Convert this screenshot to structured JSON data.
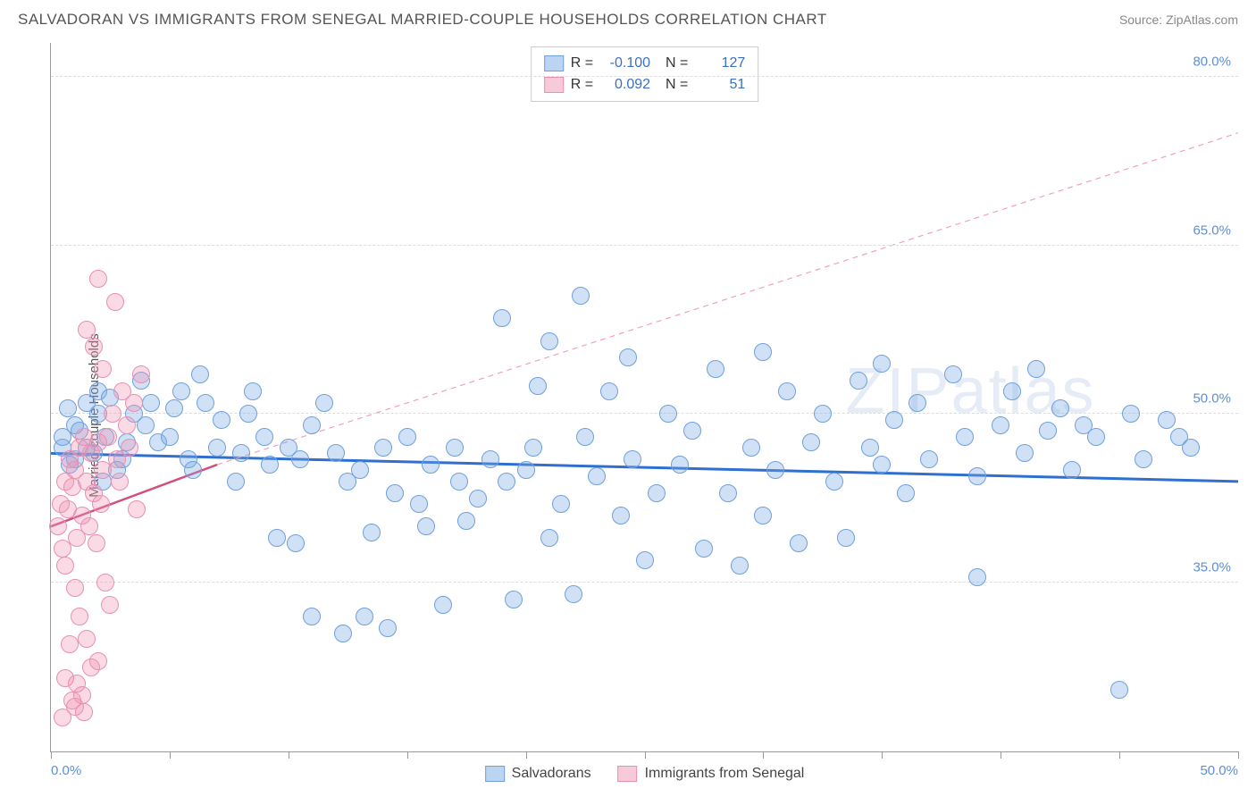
{
  "title": "SALVADORAN VS IMMIGRANTS FROM SENEGAL MARRIED-COUPLE HOUSEHOLDS CORRELATION CHART",
  "source": "Source: ZipAtlas.com",
  "ylabel": "Married-couple Households",
  "watermark": "ZIPatlas",
  "chart": {
    "type": "scatter",
    "xlim": [
      0,
      50
    ],
    "ylim": [
      20,
      83
    ],
    "yticks": [
      35,
      50,
      65,
      80
    ],
    "yticklabels": [
      "35.0%",
      "50.0%",
      "65.0%",
      "80.0%"
    ],
    "xticks": [
      0,
      5,
      10,
      15,
      20,
      25,
      30,
      35,
      40,
      45,
      50
    ],
    "xticklabels_shown": {
      "0": "0.0%",
      "50": "50.0%"
    },
    "background_color": "#ffffff",
    "grid_color": "#dddddd",
    "axis_color": "#999999",
    "marker_radius": 10,
    "series": [
      {
        "name": "Salvadorans",
        "fill": "rgba(120,170,230,0.35)",
        "stroke": "#6fa0dd",
        "regression": {
          "x1": 0,
          "y1": 46.5,
          "x2": 50,
          "y2": 44.0,
          "color": "#2f6fd0",
          "width": 3,
          "dash": "none"
        },
        "R": "-0.100",
        "N": "127",
        "points": [
          [
            0.5,
            47
          ],
          [
            0.5,
            48
          ],
          [
            1,
            46
          ],
          [
            1,
            49
          ],
          [
            0.8,
            45.5
          ],
          [
            1.5,
            47
          ],
          [
            1.2,
            48.5
          ],
          [
            1.8,
            46.5
          ],
          [
            2,
            52
          ],
          [
            2,
            50
          ],
          [
            2.5,
            51.5
          ],
          [
            2.3,
            48
          ],
          [
            3,
            46
          ],
          [
            2.8,
            45
          ],
          [
            3.2,
            47.5
          ],
          [
            3.5,
            50
          ],
          [
            4,
            49
          ],
          [
            3.8,
            53
          ],
          [
            4.2,
            51
          ],
          [
            4.5,
            47.5
          ],
          [
            5,
            48
          ],
          [
            5.5,
            52
          ],
          [
            5.2,
            50.5
          ],
          [
            5.8,
            46
          ],
          [
            6,
            45
          ],
          [
            6.5,
            51
          ],
          [
            6.3,
            53.5
          ],
          [
            7,
            47
          ],
          [
            7.2,
            49.5
          ],
          [
            7.8,
            44
          ],
          [
            8,
            46.5
          ],
          [
            8.5,
            52
          ],
          [
            8.3,
            50
          ],
          [
            9,
            48
          ],
          [
            9.5,
            39
          ],
          [
            9.2,
            45.5
          ],
          [
            10,
            47
          ],
          [
            10.5,
            46
          ],
          [
            10.3,
            38.5
          ],
          [
            11,
            32
          ],
          [
            11,
            49
          ],
          [
            11.5,
            51
          ],
          [
            12,
            46.5
          ],
          [
            12.3,
            30.5
          ],
          [
            12.5,
            44
          ],
          [
            13,
            45
          ],
          [
            13.5,
            39.5
          ],
          [
            13.2,
            32
          ],
          [
            14,
            47
          ],
          [
            14.5,
            43
          ],
          [
            14.2,
            31
          ],
          [
            15,
            48
          ],
          [
            15.5,
            42
          ],
          [
            15.8,
            40
          ],
          [
            16,
            45.5
          ],
          [
            16.5,
            33
          ],
          [
            17,
            47
          ],
          [
            17.2,
            44
          ],
          [
            17.5,
            40.5
          ],
          [
            18,
            42.5
          ],
          [
            18.5,
            46
          ],
          [
            19,
            58.5
          ],
          [
            19.2,
            44
          ],
          [
            19.5,
            33.5
          ],
          [
            20,
            45
          ],
          [
            20.5,
            52.5
          ],
          [
            20.3,
            47
          ],
          [
            21,
            56.5
          ],
          [
            21,
            39
          ],
          [
            21.5,
            42
          ],
          [
            22,
            34
          ],
          [
            22.5,
            48
          ],
          [
            22.3,
            60.5
          ],
          [
            23,
            44.5
          ],
          [
            23.5,
            52
          ],
          [
            24,
            41
          ],
          [
            24.5,
            46
          ],
          [
            24.3,
            55
          ],
          [
            25,
            37
          ],
          [
            25.5,
            43
          ],
          [
            26,
            50
          ],
          [
            26.5,
            45.5
          ],
          [
            27,
            48.5
          ],
          [
            27.5,
            38
          ],
          [
            28,
            54
          ],
          [
            28.5,
            43
          ],
          [
            29,
            36.5
          ],
          [
            29.5,
            47
          ],
          [
            30,
            55.5
          ],
          [
            30,
            41
          ],
          [
            30.5,
            45
          ],
          [
            31,
            52
          ],
          [
            31.5,
            38.5
          ],
          [
            32,
            47.5
          ],
          [
            32.5,
            50
          ],
          [
            33,
            44
          ],
          [
            33.5,
            39
          ],
          [
            34,
            53
          ],
          [
            34.5,
            47
          ],
          [
            35,
            45.5
          ],
          [
            35,
            54.5
          ],
          [
            35.5,
            49.5
          ],
          [
            36,
            43
          ],
          [
            36.5,
            51
          ],
          [
            37,
            46
          ],
          [
            38,
            53.5
          ],
          [
            38.5,
            48
          ],
          [
            39,
            44.5
          ],
          [
            39,
            35.5
          ],
          [
            40,
            49
          ],
          [
            40.5,
            52
          ],
          [
            41,
            46.5
          ],
          [
            41.5,
            54
          ],
          [
            42,
            48.5
          ],
          [
            42.5,
            50.5
          ],
          [
            43,
            45
          ],
          [
            43.5,
            49
          ],
          [
            44,
            48
          ],
          [
            45,
            25.5
          ],
          [
            45.5,
            50
          ],
          [
            46,
            46
          ],
          [
            47,
            49.5
          ],
          [
            47.5,
            48
          ],
          [
            48,
            47
          ],
          [
            0.7,
            50.5
          ],
          [
            1.5,
            51
          ],
          [
            2.2,
            44
          ]
        ]
      },
      {
        "name": "Immigrants from Senegal",
        "fill": "rgba(240,150,180,0.35)",
        "stroke": "#e890b0",
        "regression": {
          "x1": 0,
          "y1": 40.0,
          "x2": 7,
          "y2": 45.5,
          "color": "#d05080",
          "width": 2.5,
          "dash": "none"
        },
        "regression_extrapolate": {
          "x1": 7,
          "y1": 45.5,
          "x2": 50,
          "y2": 75.0,
          "color": "#f0a0c0",
          "width": 1.2,
          "dash": "6,5"
        },
        "R": "0.092",
        "N": "51",
        "points": [
          [
            0.4,
            42
          ],
          [
            0.6,
            44
          ],
          [
            0.3,
            40
          ],
          [
            0.8,
            46
          ],
          [
            0.5,
            38
          ],
          [
            1.0,
            45
          ],
          [
            0.7,
            41.5
          ],
          [
            1.2,
            47
          ],
          [
            0.9,
            43.5
          ],
          [
            1.1,
            39
          ],
          [
            1.4,
            48
          ],
          [
            0.6,
            36.5
          ],
          [
            1.5,
            44
          ],
          [
            1.3,
            41
          ],
          [
            1.7,
            46.5
          ],
          [
            1.0,
            34.5
          ],
          [
            1.8,
            43
          ],
          [
            1.6,
            40
          ],
          [
            2.0,
            47.5
          ],
          [
            1.2,
            32
          ],
          [
            2.2,
            45
          ],
          [
            0.8,
            29.5
          ],
          [
            2.1,
            42
          ],
          [
            1.9,
            38.5
          ],
          [
            2.4,
            48
          ],
          [
            1.5,
            30
          ],
          [
            2.6,
            50
          ],
          [
            1.1,
            26
          ],
          [
            2.8,
            46
          ],
          [
            0.9,
            24.5
          ],
          [
            3.0,
            52
          ],
          [
            2.3,
            35
          ],
          [
            3.2,
            49
          ],
          [
            1.7,
            27.5
          ],
          [
            3.5,
            51
          ],
          [
            2.5,
            33
          ],
          [
            3.8,
            53.5
          ],
          [
            0.5,
            23
          ],
          [
            1.3,
            25
          ],
          [
            2.0,
            28
          ],
          [
            1.8,
            56
          ],
          [
            2.7,
            60
          ],
          [
            2.0,
            62
          ],
          [
            1.5,
            57.5
          ],
          [
            2.2,
            54
          ],
          [
            0.6,
            26.5
          ],
          [
            1.0,
            24
          ],
          [
            1.4,
            23.5
          ],
          [
            2.9,
            44
          ],
          [
            3.3,
            47
          ],
          [
            3.6,
            41.5
          ]
        ]
      }
    ],
    "legend_swatch": {
      "salvadorans": {
        "fill": "rgba(120,170,230,0.5)",
        "border": "#6fa0dd"
      },
      "senegal": {
        "fill": "rgba(240,150,180,0.5)",
        "border": "#e890b0"
      }
    }
  },
  "bottom_legend": [
    {
      "label": "Salvadorans",
      "fill": "rgba(120,170,230,0.5)",
      "border": "#6fa0dd"
    },
    {
      "label": "Immigrants from Senegal",
      "fill": "rgba(240,150,180,0.5)",
      "border": "#e890b0"
    }
  ]
}
